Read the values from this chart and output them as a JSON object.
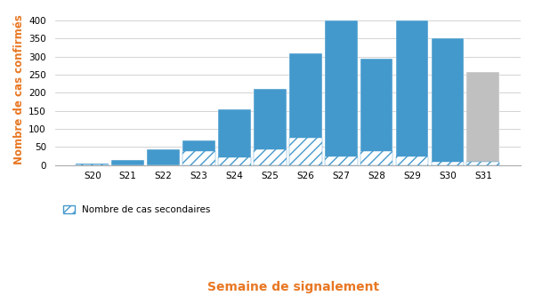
{
  "categories": [
    "S20",
    "S21",
    "S22",
    "S23",
    "S24",
    "S25",
    "S26",
    "S27",
    "S28",
    "S29",
    "S30",
    "S31"
  ],
  "total_values": [
    5,
    15,
    43,
    68,
    155,
    210,
    310,
    400,
    295,
    400,
    350,
    257
  ],
  "secondary_values": [
    2,
    0,
    0,
    38,
    22,
    45,
    75,
    23,
    38,
    23,
    10,
    10
  ],
  "bar_color_blue": "#4499CC",
  "bar_color_gray": "#C0C0C0",
  "hatch_color": "#4499CC",
  "hatch_pattern": "///",
  "ylabel": "Nombre de cas confirmés",
  "xlabel": "Semaine de signalement",
  "legend_label": "Nombre de cas secondaires",
  "ylim": [
    0,
    420
  ],
  "yticks": [
    0,
    50,
    100,
    150,
    200,
    250,
    300,
    350,
    400
  ],
  "ylabel_color": "#E87722",
  "xlabel_color": "#E87722",
  "background_color": "#FFFFFF",
  "grid_color": "#CCCCCC"
}
